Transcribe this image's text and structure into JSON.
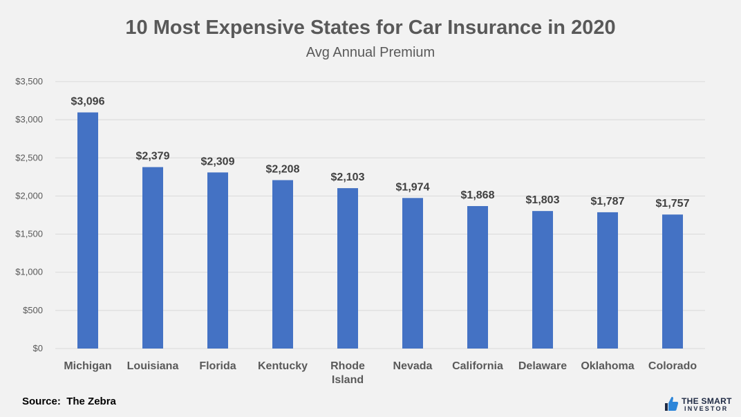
{
  "title": "10 Most Expensive States for Car Insurance in 2020",
  "subtitle": "Avg Annual Premium",
  "source_prefix": "Source:",
  "source_name": "The Zebra",
  "logo": {
    "line1": "THE SMART",
    "line2": "INVESTOR",
    "icon": "thumbs-up-icon",
    "color": "#1f2a44",
    "icon_color": "#2e86d9"
  },
  "colors": {
    "bar": "#4472c4",
    "background": "#f2f2f2",
    "grid": "#d9d9d9",
    "text": "#595959"
  },
  "chart_data": {
    "type": "bar",
    "title": "10 Most Expensive States for Car Insurance in 2020",
    "subtitle": "Avg Annual Premium",
    "categories": [
      [
        "Michigan"
      ],
      [
        "Louisiana"
      ],
      [
        "Florida"
      ],
      [
        "Kentucky"
      ],
      [
        "Rhode",
        "Island"
      ],
      [
        "Nevada"
      ],
      [
        "California"
      ],
      [
        "Delaware"
      ],
      [
        "Oklahoma"
      ],
      [
        "Colorado"
      ]
    ],
    "values": [
      3096,
      2379,
      2309,
      2208,
      2103,
      1974,
      1868,
      1803,
      1787,
      1757
    ],
    "value_labels": [
      "$3,096",
      "$2,379",
      "$2,309",
      "$2,208",
      "$2,103",
      "$1,974",
      "$1,868",
      "$1,803",
      "$1,787",
      "$1,757"
    ],
    "yticks": [
      0,
      500,
      1000,
      1500,
      2000,
      2500,
      3000,
      3500
    ],
    "ytick_labels": [
      "$0",
      "$500",
      "$1,000",
      "$1,500",
      "$2,000",
      "$2,500",
      "$3,000",
      "$3,500"
    ],
    "ylim": [
      0,
      3500
    ],
    "grid": true,
    "legend": "none"
  }
}
